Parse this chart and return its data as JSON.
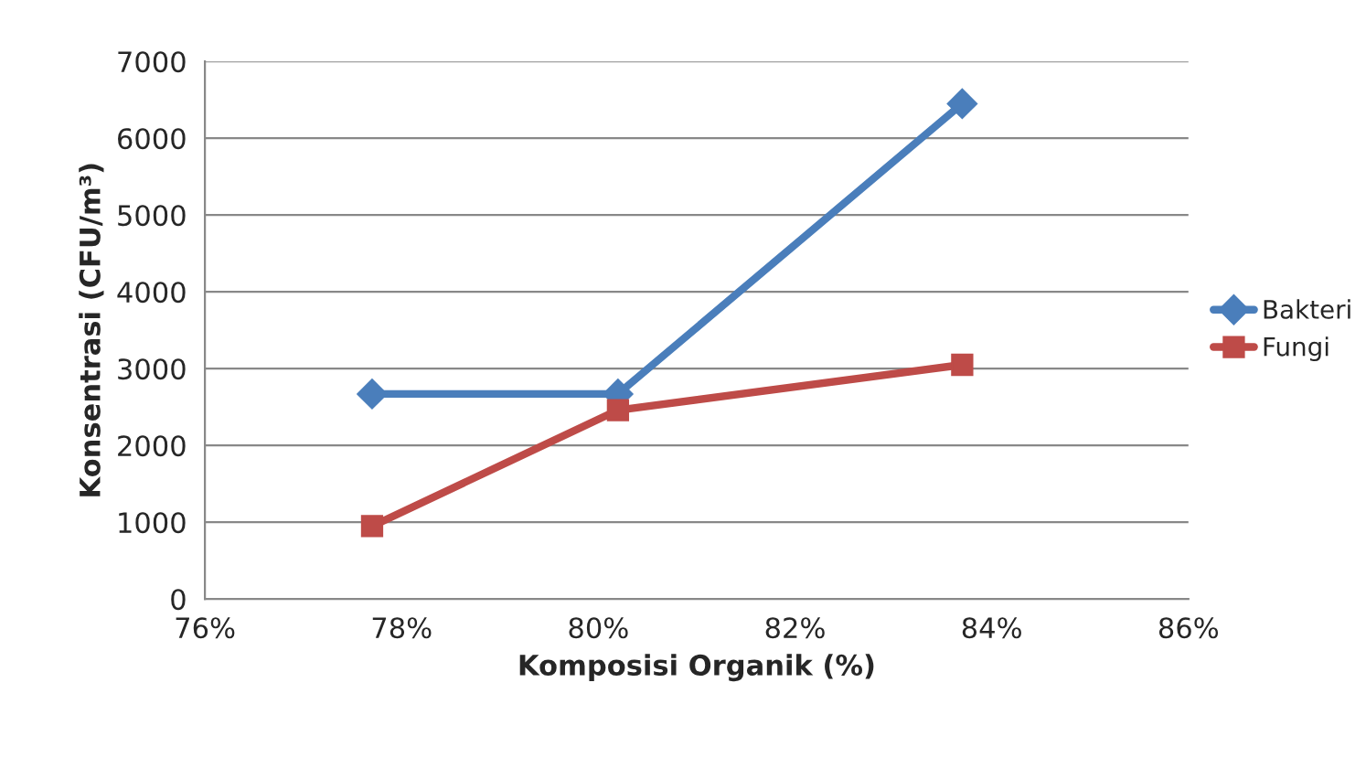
{
  "chart_data": {
    "type": "line",
    "xlabel": "Komposisi Organik (%)",
    "ylabel": "Konsentrasi (CFU/m³)",
    "xlim": [
      76,
      86
    ],
    "xticks": [
      {
        "value": 76,
        "label": "76%"
      },
      {
        "value": 78,
        "label": "78%"
      },
      {
        "value": 80,
        "label": "80%"
      },
      {
        "value": 82,
        "label": "82%"
      },
      {
        "value": 84,
        "label": "84%"
      },
      {
        "value": 86,
        "label": "86%"
      }
    ],
    "ylim": [
      0,
      7000
    ],
    "yticks": [
      0,
      1000,
      2000,
      3000,
      4000,
      5000,
      6000,
      7000
    ],
    "grid": "y",
    "legend": "right",
    "series": [
      {
        "name": "Bakteri",
        "color": "#4a7ebb",
        "marker": "diamond",
        "x": [
          77.7,
          80.2,
          83.7
        ],
        "values": [
          2670,
          2670,
          6450
        ]
      },
      {
        "name": "Fungi",
        "color": "#be4b48",
        "marker": "square",
        "x": [
          77.7,
          80.2,
          83.7
        ],
        "values": [
          950,
          2460,
          3050
        ]
      }
    ]
  }
}
